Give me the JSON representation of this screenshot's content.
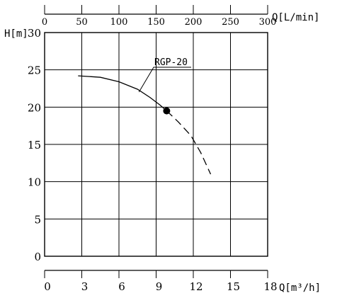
{
  "chart_data": {
    "type": "line",
    "title": "",
    "xlabel": "Q[m³/h]",
    "x2label": "Q[L/min]",
    "ylabel": "H[m]",
    "xlim": [
      0,
      18
    ],
    "x2lim": [
      0,
      300
    ],
    "ylim": [
      0,
      30
    ],
    "grid": true,
    "x_ticks": [
      0,
      3,
      6,
      9,
      12,
      15,
      18
    ],
    "x2_ticks": [
      0,
      50,
      100,
      150,
      200,
      250,
      300
    ],
    "y_ticks": [
      0,
      5,
      10,
      15,
      20,
      25,
      30
    ],
    "series": [
      {
        "name": "RGP-20",
        "solid": [
          [
            2.7,
            24.2
          ],
          [
            4.5,
            24.0
          ],
          [
            6.0,
            23.4
          ],
          [
            7.5,
            22.4
          ],
          [
            8.5,
            21.3
          ],
          [
            9.3,
            20.3
          ],
          [
            9.85,
            19.5
          ]
        ],
        "dashed": [
          [
            9.85,
            19.5
          ],
          [
            10.8,
            18.0
          ],
          [
            11.8,
            16.2
          ],
          [
            12.6,
            13.9
          ],
          [
            13.4,
            11.0
          ]
        ],
        "duty_point": [
          9.85,
          19.5
        ]
      }
    ]
  }
}
